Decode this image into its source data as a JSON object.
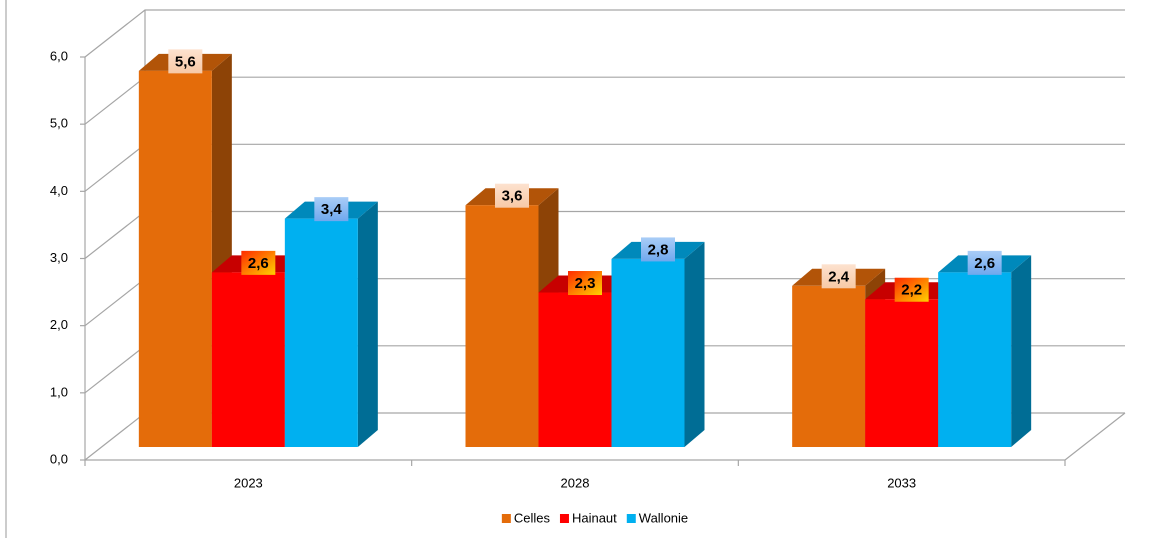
{
  "chart_data": {
    "type": "bar3d",
    "categories": [
      "2023",
      "2028",
      "2033"
    ],
    "series": [
      {
        "name": "Celles",
        "color": "#e46c0a",
        "values": [
          5.6,
          3.6,
          2.4
        ],
        "value_labels": [
          "5,6",
          "3,6",
          "2,4"
        ]
      },
      {
        "name": "Hainaut",
        "color": "#ff0000",
        "values": [
          2.6,
          2.3,
          2.2
        ],
        "value_labels": [
          "2,6",
          "2,3",
          "2,2"
        ]
      },
      {
        "name": "Wallonie",
        "color": "#00b0f0",
        "values": [
          3.4,
          2.8,
          2.6
        ],
        "value_labels": [
          "3,4",
          "2,8",
          "2,6"
        ]
      }
    ],
    "ylim": [
      0,
      6
    ],
    "yticks": [
      {
        "value": 0,
        "label": "0,0"
      },
      {
        "value": 1,
        "label": "1,0"
      },
      {
        "value": 2,
        "label": "2,0"
      },
      {
        "value": 3,
        "label": "3,0"
      },
      {
        "value": 4,
        "label": "4,0"
      },
      {
        "value": 5,
        "label": "5,0"
      },
      {
        "value": 6,
        "label": "6,0"
      }
    ],
    "grid": true,
    "legend": "bottom"
  }
}
